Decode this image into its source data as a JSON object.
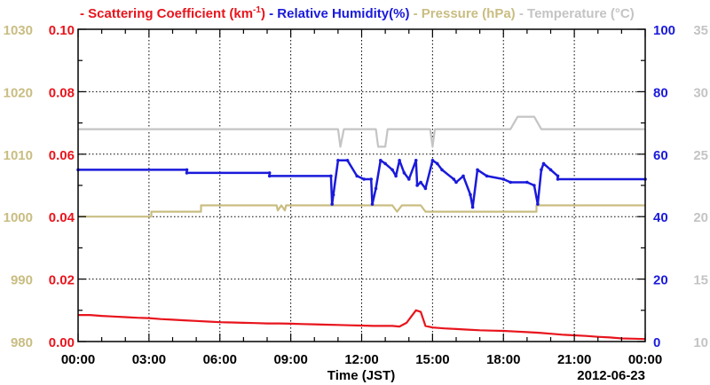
{
  "chart_data": {
    "type": "line",
    "xlabel": "Time (JST)",
    "date_label": "2012-06-23",
    "x_ticks": [
      "00:00",
      "03:00",
      "06:00",
      "09:00",
      "12:00",
      "15:00",
      "18:00",
      "21:00",
      "00:00"
    ],
    "x_range_hours": [
      0,
      24
    ],
    "grid": true,
    "legend": [
      {
        "text": "- Scattering Coefficient (km",
        "sup": "-1",
        "tail": ")",
        "color": "#e8141c"
      },
      {
        "text": "- Relative Humidity(%)",
        "color": "#1a1adb"
      },
      {
        "text": "- Pressure (hPa)",
        "color": "#c9bd82"
      },
      {
        "text": "- Temperature (°C)",
        "color": "#c4c4c4"
      }
    ],
    "axes": {
      "pressure": {
        "ticks": [
          "1030",
          "1020",
          "1010",
          "1000",
          "990",
          "980"
        ],
        "range": [
          980,
          1030
        ],
        "color": "#c9bd82"
      },
      "scattering": {
        "ticks": [
          "0.10",
          "0.08",
          "0.06",
          "0.04",
          "0.02",
          "0.00"
        ],
        "range": [
          0,
          0.1
        ],
        "color": "#e8141c"
      },
      "humidity": {
        "ticks": [
          "100",
          "80",
          "60",
          "40",
          "20",
          "0"
        ],
        "range": [
          0,
          100
        ],
        "color": "#1a1adb"
      },
      "temperature": {
        "ticks": [
          "35",
          "30",
          "25",
          "20",
          "15",
          "10"
        ],
        "range": [
          10,
          35
        ],
        "color": "#c4c4c4"
      }
    },
    "series": [
      {
        "name": "Scattering Coefficient",
        "axis": "scattering",
        "color": "#e8141c",
        "x": [
          0,
          0.5,
          1,
          1.5,
          2,
          2.5,
          3,
          3.5,
          4,
          4.5,
          5,
          5.5,
          6,
          6.5,
          7,
          7.5,
          8,
          8.5,
          9,
          9.5,
          10,
          10.5,
          11,
          11.5,
          12,
          12.5,
          13,
          13.3,
          13.6,
          13.9,
          14.1,
          14.3,
          14.5,
          14.7,
          15,
          15.5,
          16,
          16.5,
          17,
          17.5,
          18,
          18.5,
          19,
          19.5,
          20,
          20.5,
          21,
          21.5,
          22,
          22.5,
          23,
          23.5,
          24
        ],
        "values": [
          0.0085,
          0.0085,
          0.0082,
          0.008,
          0.0078,
          0.0076,
          0.0075,
          0.0072,
          0.007,
          0.0068,
          0.0066,
          0.0064,
          0.0062,
          0.0061,
          0.006,
          0.0059,
          0.0058,
          0.0058,
          0.0057,
          0.0056,
          0.0055,
          0.0054,
          0.0053,
          0.0052,
          0.0051,
          0.005,
          0.005,
          0.005,
          0.0048,
          0.006,
          0.008,
          0.01,
          0.0095,
          0.005,
          0.0045,
          0.0042,
          0.004,
          0.0038,
          0.0036,
          0.0035,
          0.0034,
          0.0032,
          0.003,
          0.0028,
          0.0025,
          0.0022,
          0.002,
          0.0018,
          0.0015,
          0.0013,
          0.001,
          0.0009,
          0.0008
        ]
      },
      {
        "name": "Relative Humidity",
        "axis": "humidity",
        "color": "#1a1adb",
        "x": [
          0,
          4.6,
          4.6,
          8.1,
          8.1,
          10.7,
          10.75,
          10.8,
          11.0,
          11.4,
          11.8,
          12.1,
          12.4,
          12.45,
          12.6,
          12.8,
          13.0,
          13.3,
          13.45,
          13.6,
          13.8,
          14.0,
          14.3,
          14.35,
          14.5,
          14.7,
          15.0,
          15.2,
          15.4,
          15.9,
          16.0,
          16.3,
          16.6,
          16.7,
          16.9,
          17.3,
          18.0,
          18.3,
          19.0,
          19.3,
          19.45,
          19.6,
          19.7,
          20.0,
          20.3,
          20.3,
          24
        ],
        "values": [
          55,
          55,
          54,
          54,
          53,
          53,
          44,
          47,
          58,
          58,
          53,
          52,
          52,
          44,
          49,
          58,
          57,
          55,
          53,
          58,
          54,
          52,
          58,
          50,
          51,
          49,
          58,
          57,
          55,
          52,
          51,
          53,
          47,
          43,
          55,
          53,
          52,
          51,
          51,
          50,
          44,
          55,
          57,
          55,
          53,
          52,
          52
        ]
      },
      {
        "name": "Pressure",
        "axis": "pressure",
        "color": "#c9bd82",
        "x": [
          0,
          3.1,
          3.1,
          5.2,
          5.2,
          8.4,
          8.45,
          8.6,
          8.75,
          8.8,
          11.0,
          11.5,
          12.6,
          12.8,
          13.3,
          13.5,
          13.7,
          14.5,
          14.7,
          15.0,
          15.5,
          19.4,
          19.4,
          24
        ],
        "values": [
          1000.0,
          1000.0,
          1000.8,
          1000.8,
          1001.8,
          1001.8,
          1001.0,
          1001.8,
          1001.0,
          1001.8,
          1001.8,
          1001.8,
          1001.8,
          1001.8,
          1001.8,
          1000.8,
          1001.8,
          1001.8,
          1000.8,
          1000.8,
          1000.8,
          1000.8,
          1001.8,
          1001.8
        ]
      },
      {
        "name": "Temperature",
        "axis": "temperature",
        "color": "#c4c4c4",
        "x": [
          0,
          11.0,
          11.1,
          11.25,
          11.4,
          12.6,
          12.7,
          13.0,
          13.1,
          14.9,
          15.0,
          15.1,
          18.3,
          18.6,
          19.3,
          19.6,
          24
        ],
        "values": [
          27,
          27,
          25.6,
          27,
          27,
          27,
          25.6,
          25.6,
          27,
          27,
          25.6,
          27,
          27,
          28,
          28,
          27,
          27
        ]
      }
    ]
  }
}
